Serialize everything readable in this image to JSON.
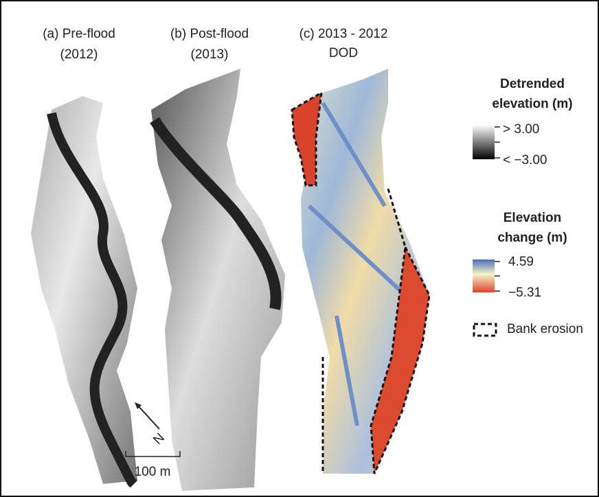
{
  "panels": [
    {
      "label": "(a) Pre-flood",
      "year": "(2012)"
    },
    {
      "label": "(b) Post-flood",
      "year": "(2013)"
    },
    {
      "label": "(c) 2013 - 2012",
      "year": "DOD"
    }
  ],
  "legend": {
    "detrended": {
      "title_1": "Detrended",
      "title_2": "elevation (m)",
      "max": "> 3.00",
      "min": "< −3.00"
    },
    "change": {
      "title_1": "Elevation",
      "title_2": "change (m)",
      "max": "4.59",
      "min": "−5.31"
    },
    "erosion": "Bank erosion"
  },
  "north": "N",
  "scale": "100 m"
}
